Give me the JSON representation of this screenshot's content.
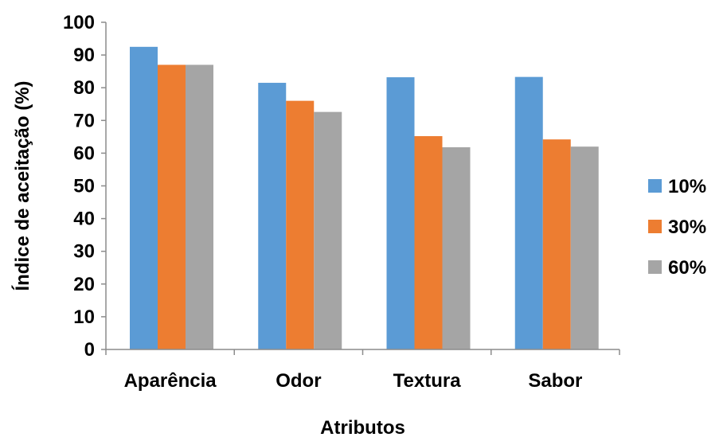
{
  "chart_data": {
    "type": "bar",
    "categories": [
      "Aparência",
      "Odor",
      "Textura",
      "Sabor"
    ],
    "series": [
      {
        "name": "10%",
        "values": [
          92.5,
          81.5,
          83.2,
          83.3
        ],
        "color": "#5B9BD5"
      },
      {
        "name": "30%",
        "values": [
          87.0,
          76.0,
          65.2,
          64.2
        ],
        "color": "#ED7D31"
      },
      {
        "name": "60%",
        "values": [
          87.0,
          72.6,
          61.8,
          62.0
        ],
        "color": "#A5A5A5"
      }
    ],
    "title": "",
    "xlabel": "Atributos",
    "ylabel": "Índice de aceitação (%)",
    "ylim": [
      0,
      100
    ],
    "yticks": [
      0,
      10,
      20,
      30,
      40,
      50,
      60,
      70,
      80,
      90,
      100
    ],
    "grid": false,
    "legend_position": "right"
  }
}
